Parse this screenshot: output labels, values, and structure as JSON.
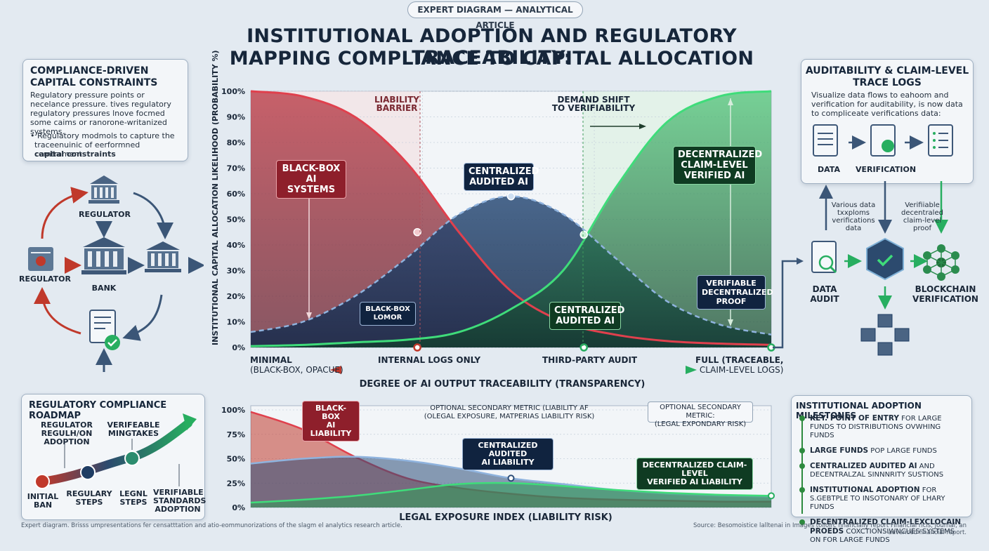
{
  "header": {
    "tag": "EXPERT DIAGRAM — ANALYTICAL ARTICLE",
    "title_line1": "INSTITUTIONAL ADOPTION AND REGULATORY TRACEABILITY:",
    "title_line2": "MAPPING COMPLIANCE TO CAPITAL ALLOCATION"
  },
  "left_panel": {
    "title_line1": "COMPLIANCE-DRIVEN",
    "title_line2": "CAPITAL CONSTRAINTS",
    "body": "Regulatory pressure points or necelance pressure. tives regulatory regulatory pressures lnove focmed some caims or ranorone-writanized systems.",
    "bullet_line1": "• Regulatory modmols to capture the",
    "bullet_line2": "traceenuinic of eerformned comtrament",
    "bullet_line3": "capital constraints"
  },
  "flow": {
    "regulator_top": "REGULATOR",
    "regulator_left": "REGULATOR",
    "bank": "BANK"
  },
  "roadmap": {
    "title": "REGULATORY COMPLIANCE ROADMAP",
    "label_top1_l1": "REGULATOR",
    "label_top1_l2": "REGULH/ON",
    "label_top1_l3": "ADOPTION",
    "label_top2_l1": "VERIFEABLE",
    "label_top2_l2": "MINGTAKES",
    "label_b1_l1": "INITIAL",
    "label_b1_l2": "BAN",
    "label_b2_l1": "REGULARY",
    "label_b2_l2": "STEPS",
    "label_b3_l1": "LEGNL",
    "label_b3_l2": "STEPS",
    "label_b4_l1": "VERIFIABLE",
    "label_b4_l2": "STANDARDS",
    "label_b4_l3": "ADOPTION"
  },
  "main_chart": {
    "ylabel": "INSTITUTIONAL CAPITAL ALLOCATION LIKELIHOOD (PROBABILITY %)",
    "yticks": [
      "0%",
      "10%",
      "20%",
      "30%",
      "40%",
      "50%",
      "60%",
      "70%",
      "80%",
      "90%",
      "100%"
    ],
    "region_liability_l1": "LIABILITY",
    "region_liability_l2": "BARRIER",
    "region_demand_l1": "DEMAND SHIFT",
    "region_demand_l2": "TO VERIFIABILITY",
    "callout_blackbox_l1": "BLACK-BOX",
    "callout_blackbox_l2": "AI SYSTEMS",
    "callout_central_l1": "CENTRALIZED",
    "callout_central_l2": "AUDITED AI",
    "callout_decentral_l1": "DECENTRALIZED",
    "callout_decentral_l2": "CLAIM-LEVEL",
    "callout_decentral_l3": "VERIFIED AI",
    "callout_bb_small_l1": "BLACK-BOX",
    "callout_bb_small_l2": "LOMOR",
    "callout_central2_l1": "CENTRALIZED",
    "callout_central2_l2": "AUDITED AI",
    "callout_verif_l1": "VERIFIABLE",
    "callout_verif_l2": "DECENTRALIZED",
    "callout_verif_l3": "PROOF",
    "xtick_minimal_l1": "MINIMAL",
    "xtick_minimal_l2": "(BLACK-BOX, OPACUE)",
    "xtick_internal": "INTERNAL LOGS ONLY",
    "xtick_thirdparty": "THIRD-PARTY AUDIT",
    "xtick_full_l1": "FULL (TRACEABLE,",
    "xtick_full_l2": "CLAIM-LEVEL LOGS)",
    "xlabel": "DEGREE OF AI OUTPUT TRACEABILITY (TRANSPARENCY)"
  },
  "lower_chart": {
    "yticks": [
      "0%",
      "25%",
      "50%",
      "75%",
      "100%"
    ],
    "callout_bb_l1": "BLACK-BOX",
    "callout_bb_l2": "AI LIABILITY",
    "callout_central_l1": "CENTRALIZED AUDITED",
    "callout_central_l2": "AI LIABILITY",
    "callout_decentral_l1": "DECENTRALIZED CLAIM-LEVEL",
    "callout_decentral_l2": "VERIFIED AI LIABILITY",
    "note1_l1": "OPTIONAL SECONDARY METRIC (LIABILITY AF",
    "note1_l2": "(OLEGAL EXPOSURE, MATPERIAS LIABILITY RISK)",
    "note2_l1": "OPTIONAL SECONDARY METRIC:",
    "note2_l2": "(LEGAL EXPONDARY RISK)",
    "xlabel": "LEGAL EXPOSURE INDEX (LIABILITY RISK)"
  },
  "right_panel": {
    "title_line1": "AUDITABILITY & CLAIM-LEVEL",
    "title_line2": "TRACE LOGS",
    "body": "Visualize data flows to eahoom and verification for auditability, is now data to compliceate verifications data:",
    "step_data": "DATA",
    "step_verification": "VERIFICATION",
    "note_left_l1": "Various data",
    "note_left_l2": "txxploms",
    "note_left_l3": "verifications",
    "note_left_l4": "data",
    "note_right_l1": "Verifiiable",
    "note_right_l2": "decentraled",
    "note_right_l3": "claim-level",
    "note_right_l4": "proof",
    "data_audit_l1": "DATA",
    "data_audit_l2": "AUDIT",
    "blockchain_l1": "BLOCKCHAIN",
    "blockchain_l2": "VERIFICATION"
  },
  "milestones": {
    "title": "INSTITUTIONAL ADOPTION MILESTONES",
    "items": [
      {
        "bold": "KEY. POINT OF ENTRY",
        "rest": " FOR LARGE FUNDS TO DISTRIBUTIONS OVWHING FUNDS"
      },
      {
        "bold": "LARGE FUNDS",
        "rest": " POP LARGE FUNDS"
      },
      {
        "bold": "CENTRALIZED AUDITED AI",
        "rest": " AND DECENTRALZAL SINNNRITY SUSTIONS"
      },
      {
        "bold": "INSTITUTIONAL ADOPTION",
        "rest": " FOR S.GEBTPLE TO INSOTONARY OF LHARY FUNDS"
      },
      {
        "bold": "DECENTRALIZED CLAIM-LEXCLOCAIN PROEDS",
        "rest": " COXCTIONSIWNCUES SYSTEMS ON FOR LARGE FUNDS"
      }
    ]
  },
  "footer": {
    "left": "Expert diagram. Brisss umpresentations fer censatttation and atio-eommunorizations of the slagm el analytics research article.",
    "right": "Source: Besomoistice lalltenai in Images tolloirc financially report Financial ricls, Journal, an advanced financial report."
  },
  "colors": {
    "red": "#c0392b",
    "navy": "#1f3d63",
    "green": "#27ae60",
    "background": "#e3eaf1"
  },
  "chart_data": [
    {
      "type": "line",
      "xlabel": "DEGREE OF AI OUTPUT TRACEABILITY (TRANSPARENCY)",
      "ylabel": "INSTITUTIONAL CAPITAL ALLOCATION LIKELIHOOD (PROBABILITY %)",
      "ylim": [
        0,
        100
      ],
      "xlim": [
        0,
        1
      ],
      "x_categories": [
        "MINIMAL (BLACK-BOX, OPACUE)",
        "INTERNAL LOGS ONLY",
        "THIRD-PARTY AUDIT",
        "FULL (TRACEABLE, CLAIM-LEVEL LOGS)"
      ],
      "series": [
        {
          "name": "BLACK-BOX AI SYSTEMS",
          "color": "#c0392b",
          "x": [
            0,
            0.1,
            0.2,
            0.3,
            0.4,
            0.5,
            0.6,
            0.7,
            0.8,
            0.9,
            1.0
          ],
          "y": [
            100,
            98,
            90,
            72,
            45,
            22,
            10,
            5,
            2.5,
            1.5,
            1
          ]
        },
        {
          "name": "CENTRALIZED AUDITED AI",
          "color": "#1f3d63",
          "x": [
            0,
            0.1,
            0.2,
            0.3,
            0.4,
            0.5,
            0.6,
            0.7,
            0.8,
            0.9,
            1.0
          ],
          "y": [
            6,
            10,
            20,
            35,
            52,
            59,
            52,
            35,
            18,
            9,
            5
          ]
        },
        {
          "name": "DECENTRALIZED CLAIM-LEVEL VERIFIED AI",
          "color": "#27ae60",
          "x": [
            0,
            0.1,
            0.2,
            0.3,
            0.4,
            0.5,
            0.6,
            0.7,
            0.8,
            0.9,
            1.0
          ],
          "y": [
            0.5,
            1,
            2,
            3,
            6,
            15,
            30,
            62,
            88,
            98,
            100
          ]
        }
      ]
    },
    {
      "type": "area",
      "xlabel": "LEGAL EXPOSURE INDEX (LIABILITY RISK)",
      "ylim": [
        0,
        100
      ],
      "xlim": [
        0,
        1
      ],
      "series": [
        {
          "name": "BLACK-BOX AI LIABILITY",
          "color": "#c0392b",
          "x": [
            0,
            0.1,
            0.2,
            0.3,
            0.4,
            0.5,
            0.6,
            0.7,
            0.8,
            0.9,
            1.0
          ],
          "y": [
            98,
            80,
            52,
            30,
            20,
            14,
            10,
            8,
            7,
            6,
            6
          ]
        },
        {
          "name": "CENTRALIZED AUDITED AI LIABILITY",
          "color": "#1f3d63",
          "x": [
            0,
            0.1,
            0.2,
            0.3,
            0.4,
            0.5,
            0.6,
            0.7,
            0.8,
            0.9,
            1.0
          ],
          "y": [
            45,
            50,
            52,
            48,
            40,
            30,
            24,
            18,
            14,
            12,
            11
          ]
        },
        {
          "name": "DECENTRALIZED CLAIM-LEVEL VERIFIED AI LIABILITY",
          "color": "#27ae60",
          "x": [
            0,
            0.1,
            0.2,
            0.3,
            0.4,
            0.5,
            0.6,
            0.7,
            0.8,
            0.9,
            1.0
          ],
          "y": [
            5,
            8,
            12,
            18,
            24,
            25,
            22,
            18,
            15,
            13,
            12
          ]
        }
      ]
    }
  ]
}
